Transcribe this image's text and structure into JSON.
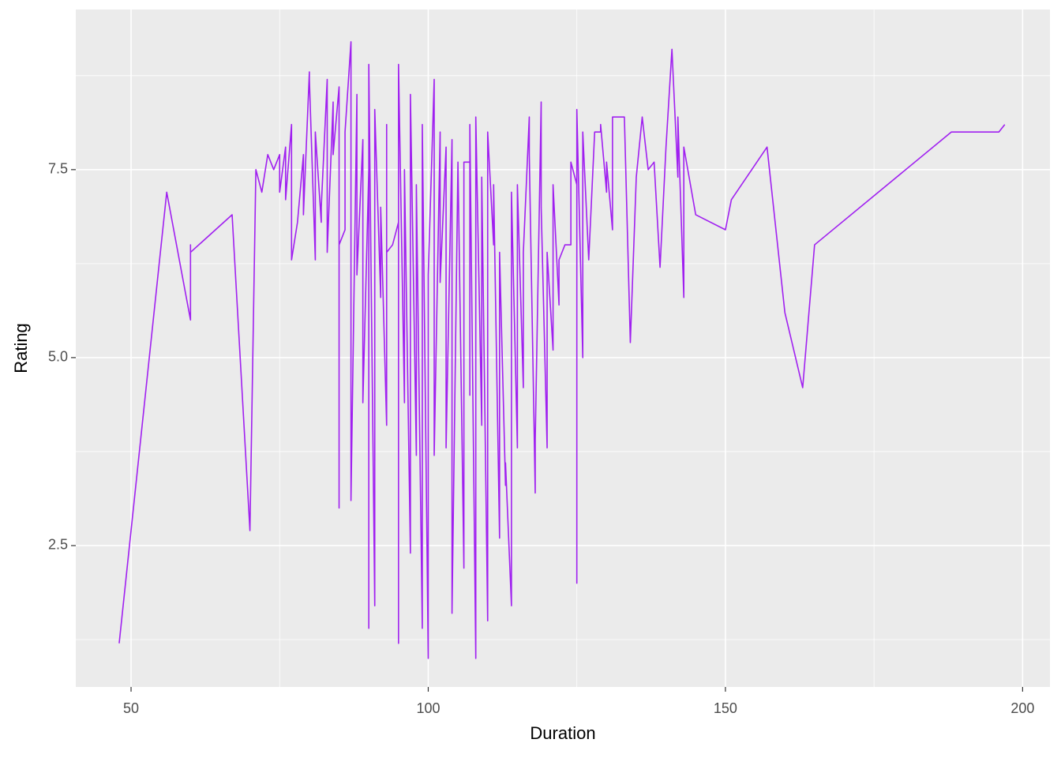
{
  "chart_data": {
    "type": "line",
    "x_label": "Duration",
    "y_label": "Rating",
    "color": "#a020f0",
    "x": [
      48,
      56,
      60,
      60,
      60,
      67,
      70,
      71,
      72,
      73,
      74,
      75,
      75,
      76,
      76,
      77,
      77,
      78,
      79,
      79,
      80,
      80,
      81,
      81,
      82,
      82,
      83,
      83,
      84,
      84,
      85,
      85,
      85,
      86,
      86,
      87,
      87,
      88,
      88,
      89,
      89,
      90,
      90,
      90,
      91,
      91,
      92,
      92,
      93,
      93,
      93,
      94,
      95,
      95,
      95,
      96,
      96,
      97,
      97,
      98,
      98,
      99,
      99,
      100,
      100,
      101,
      101,
      102,
      102,
      103,
      103,
      104,
      104,
      105,
      106,
      106,
      107,
      107,
      107,
      108,
      108,
      109,
      109,
      110,
      110,
      111,
      111,
      112,
      112,
      113,
      113,
      114,
      114,
      115,
      115,
      116,
      116,
      117,
      117,
      118,
      118,
      119,
      119,
      120,
      120,
      121,
      121,
      122,
      122,
      123,
      124,
      124,
      125,
      125,
      125,
      126,
      126,
      127,
      128,
      129,
      129,
      130,
      130,
      131,
      131,
      133,
      134,
      135,
      136,
      137,
      138,
      139,
      140,
      141,
      142,
      142,
      143,
      143,
      145,
      150,
      151,
      157,
      160,
      163,
      165,
      188,
      196,
      197
    ],
    "values": [
      1.2,
      7.2,
      5.5,
      6.5,
      6.4,
      6.9,
      2.7,
      7.5,
      7.2,
      7.7,
      7.5,
      7.7,
      7.2,
      7.8,
      7.1,
      8.1,
      6.3,
      6.8,
      7.7,
      6.9,
      8.8,
      8.7,
      6.3,
      8.0,
      6.8,
      7.0,
      8.7,
      6.4,
      8.4,
      7.7,
      8.6,
      3.0,
      6.5,
      6.7,
      8.0,
      9.2,
      3.1,
      8.5,
      6.1,
      7.9,
      4.4,
      7.5,
      1.4,
      8.9,
      1.7,
      8.3,
      5.8,
      7.0,
      4.1,
      8.1,
      6.4,
      6.5,
      6.8,
      1.2,
      8.9,
      4.4,
      7.5,
      2.4,
      8.5,
      3.7,
      7.3,
      1.4,
      8.1,
      1.0,
      6.1,
      8.7,
      3.7,
      8.0,
      6.0,
      7.8,
      3.8,
      7.9,
      1.6,
      7.6,
      2.2,
      7.6,
      7.6,
      4.5,
      8.1,
      1.0,
      8.2,
      4.1,
      7.4,
      1.5,
      8.0,
      6.5,
      7.3,
      2.6,
      6.4,
      3.3,
      3.6,
      1.7,
      7.2,
      3.8,
      7.3,
      4.6,
      6.4,
      8.2,
      7.7,
      3.2,
      3.9,
      8.4,
      7.0,
      3.8,
      6.4,
      5.1,
      7.3,
      5.7,
      6.3,
      6.5,
      6.5,
      7.6,
      7.3,
      2.0,
      8.3,
      5.0,
      8.0,
      6.3,
      8.0,
      8.0,
      8.1,
      7.2,
      7.6,
      6.7,
      8.2,
      8.2,
      5.2,
      7.4,
      8.2,
      7.5,
      7.6,
      6.2,
      7.8,
      9.1,
      7.4,
      8.2,
      5.8,
      7.8,
      6.9,
      6.7,
      7.1,
      7.8,
      5.6,
      4.6,
      6.5,
      8.0,
      8.0,
      8.1
    ],
    "xlim": [
      40.7,
      204.6
    ],
    "ylim": [
      0.62,
      9.63
    ],
    "xticks": [
      50,
      100,
      150,
      200
    ],
    "yticks": [
      2.5,
      {
        "value": 5,
        "label": "5.0"
      },
      7.5
    ],
    "minor_xgrid": [
      75,
      125,
      175
    ],
    "minor_ygrid": [
      1.25,
      3.75,
      6.25,
      8.75
    ],
    "grid": true
  }
}
